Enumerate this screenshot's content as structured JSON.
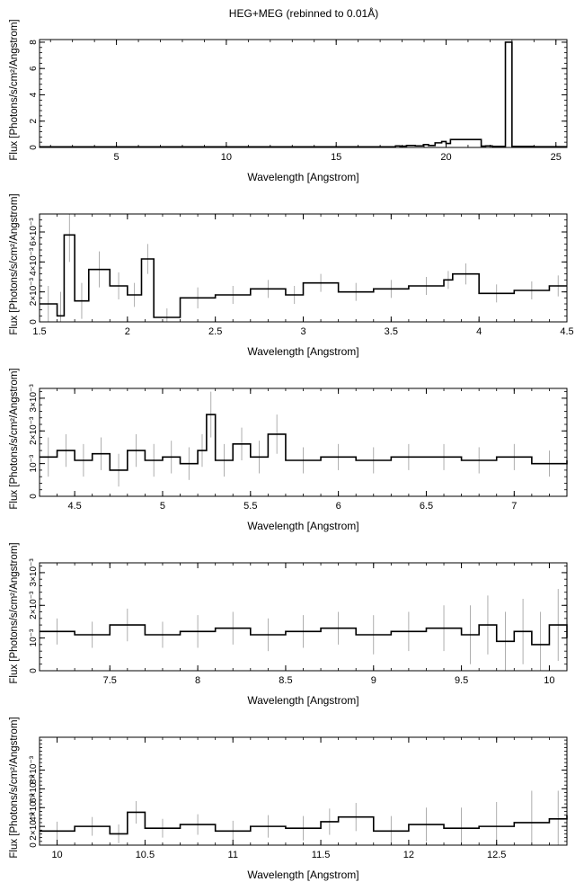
{
  "figure_title": "HEG+MEG (rebinned to 0.01Å)",
  "chart_data": [
    {
      "type": "line",
      "title": "HEG+MEG (rebinned to 0.01Å)",
      "xlabel": "Wavelength [Angstrom]",
      "ylabel": "Flux [Photons/s/cm²/Angstrom]",
      "xlim": [
        1.5,
        25.5
      ],
      "ylim": [
        0,
        8.2
      ],
      "xticks": [
        5,
        10,
        15,
        20,
        25
      ],
      "xtick_labels": [
        "5",
        "10",
        "15",
        "20",
        "25"
      ],
      "yticks": [
        0,
        2,
        4,
        6,
        8
      ],
      "ytick_labels": [
        "0",
        "2",
        "4",
        "6",
        "8"
      ],
      "grid": false,
      "series": [
        {
          "style": "histogram-step",
          "x": [
            1.5,
            17.7,
            17.9,
            18.2,
            18.6,
            18.97,
            19.2,
            19.5,
            19.8,
            20.0,
            20.2,
            21.6,
            21.8,
            22.1,
            22.7,
            23.0,
            24.0,
            25.5
          ],
          "y": [
            0.05,
            0.12,
            0.1,
            0.15,
            0.12,
            0.22,
            0.15,
            0.35,
            0.45,
            0.3,
            0.6,
            0.1,
            0.12,
            0.08,
            8.0,
            0.08,
            0.06,
            0.06
          ]
        }
      ]
    },
    {
      "type": "line",
      "xlabel": "Wavelength [Angstrom]",
      "ylabel": "Flux [Photons/s/cm²/Angstrom]",
      "xlim": [
        1.5,
        4.5
      ],
      "ylim": [
        0,
        0.0072
      ],
      "xticks": [
        1.5,
        2,
        2.5,
        3,
        3.5,
        4,
        4.5
      ],
      "xtick_labels": [
        "1.5",
        "2",
        "2.5",
        "3",
        "3.5",
        "4",
        "4.5"
      ],
      "yticks": [
        0,
        0.002,
        0.004,
        0.006
      ],
      "ytick_labels": [
        "0",
        "2×10⁻³",
        "4×10⁻³",
        "6×10⁻³"
      ],
      "grid": false,
      "series": [
        {
          "style": "histogram-step-with-errors",
          "x": [
            1.5,
            1.6,
            1.64,
            1.7,
            1.78,
            1.9,
            2.0,
            2.08,
            2.15,
            2.3,
            2.5,
            2.7,
            2.9,
            3.0,
            3.2,
            3.4,
            3.6,
            3.8,
            3.85,
            4.0,
            4.2,
            4.4
          ],
          "y": [
            0.0012,
            0.0004,
            0.0058,
            0.0014,
            0.0035,
            0.0024,
            0.0018,
            0.0042,
            0.0003,
            0.0016,
            0.0018,
            0.0022,
            0.0018,
            0.0026,
            0.002,
            0.0022,
            0.0024,
            0.0028,
            0.0032,
            0.0019,
            0.0021,
            0.0024
          ],
          "yerr": [
            0.0012,
            0.0016,
            0.0018,
            0.0012,
            0.0012,
            0.0009,
            0.0008,
            0.001,
            0.0006,
            0.0007,
            0.0006,
            0.0006,
            0.0006,
            0.0006,
            0.0006,
            0.0006,
            0.0006,
            0.0006,
            0.0007,
            0.0006,
            0.0006,
            0.0007
          ]
        }
      ]
    },
    {
      "type": "line",
      "xlabel": "Wavelength [Angstrom]",
      "ylabel": "Flux [Photons/s/cm²/Angstrom]",
      "xlim": [
        4.3,
        7.3
      ],
      "ylim": [
        0,
        0.0033
      ],
      "xticks": [
        4.5,
        5,
        5.5,
        6,
        6.5,
        7
      ],
      "xtick_labels": [
        "4.5",
        "5",
        "5.5",
        "6",
        "6.5",
        "7"
      ],
      "yticks": [
        0,
        0.001,
        0.002,
        0.003
      ],
      "ytick_labels": [
        "0",
        "10⁻³",
        "2×10⁻³",
        "3×10⁻³"
      ],
      "grid": false,
      "series": [
        {
          "style": "histogram-step-with-errors",
          "x": [
            4.3,
            4.4,
            4.5,
            4.6,
            4.7,
            4.8,
            4.9,
            5.0,
            5.1,
            5.2,
            5.25,
            5.3,
            5.4,
            5.5,
            5.6,
            5.7,
            5.9,
            6.1,
            6.3,
            6.5,
            6.7,
            6.9,
            7.1,
            7.3
          ],
          "y": [
            0.0012,
            0.0014,
            0.0011,
            0.0013,
            0.0008,
            0.0014,
            0.0011,
            0.0012,
            0.001,
            0.0014,
            0.0025,
            0.0011,
            0.0016,
            0.0012,
            0.0019,
            0.0011,
            0.0012,
            0.0011,
            0.0012,
            0.0012,
            0.0011,
            0.0012,
            0.001,
            0.0011
          ],
          "yerr": [
            0.0006,
            0.0005,
            0.0005,
            0.0005,
            0.0005,
            0.0005,
            0.0005,
            0.0005,
            0.0005,
            0.0005,
            0.0007,
            0.0005,
            0.0005,
            0.0005,
            0.0006,
            0.0004,
            0.0004,
            0.0004,
            0.0004,
            0.0004,
            0.0004,
            0.0004,
            0.0004,
            0.0004
          ]
        }
      ]
    },
    {
      "type": "line",
      "xlabel": "Wavelength [Angstrom]",
      "ylabel": "Flux [Photons/s/cm²/Angstrom]",
      "xlim": [
        7.1,
        10.1
      ],
      "ylim": [
        0,
        0.0033
      ],
      "xticks": [
        7.5,
        8,
        8.5,
        9,
        9.5,
        10
      ],
      "xtick_labels": [
        "7.5",
        "8",
        "8.5",
        "9",
        "9.5",
        "10"
      ],
      "yticks": [
        0,
        0.001,
        0.002,
        0.003
      ],
      "ytick_labels": [
        "0",
        "10⁻³",
        "2×10⁻³",
        "3×10⁻³"
      ],
      "grid": false,
      "series": [
        {
          "style": "histogram-step-with-errors",
          "x": [
            7.1,
            7.3,
            7.5,
            7.7,
            7.9,
            8.1,
            8.3,
            8.5,
            8.7,
            8.9,
            9.1,
            9.3,
            9.5,
            9.6,
            9.7,
            9.8,
            9.9,
            10.0,
            10.1
          ],
          "y": [
            0.0012,
            0.0011,
            0.0014,
            0.0011,
            0.0012,
            0.0013,
            0.0011,
            0.0012,
            0.0013,
            0.0011,
            0.0012,
            0.0013,
            0.0011,
            0.0014,
            0.0009,
            0.0012,
            0.0008,
            0.0014,
            0.001
          ],
          "yerr": [
            0.0004,
            0.0004,
            0.0005,
            0.0004,
            0.0005,
            0.0005,
            0.0005,
            0.0005,
            0.0005,
            0.0006,
            0.0006,
            0.0007,
            0.0009,
            0.0009,
            0.0009,
            0.001,
            0.001,
            0.0011,
            0.0011
          ]
        }
      ]
    },
    {
      "type": "line",
      "xlabel": "Wavelength [Angstrom]",
      "ylabel": "Flux [Photons/s/cm²/Angstrom]",
      "xlim": [
        9.9,
        12.9
      ],
      "ylim": [
        0,
        0.0115
      ],
      "xticks": [
        10,
        10.5,
        11,
        11.5,
        12,
        12.5
      ],
      "xtick_labels": [
        "10",
        "10.5",
        "11",
        "11.5",
        "12",
        "12.5"
      ],
      "yticks": [
        0,
        0.002,
        0.004,
        0.006,
        0.008
      ],
      "ytick_labels": [
        "0",
        "2×10⁻³",
        "4×10⁻³",
        "6×10⁻³",
        "8×10⁻³"
      ],
      "grid": false,
      "series": [
        {
          "style": "histogram-step-with-errors",
          "x": [
            9.9,
            10.1,
            10.3,
            10.4,
            10.5,
            10.7,
            10.9,
            11.1,
            11.3,
            11.5,
            11.6,
            11.8,
            12.0,
            12.2,
            12.4,
            12.6,
            12.8,
            12.9
          ],
          "y": [
            0.0015,
            0.002,
            0.0012,
            0.0035,
            0.0018,
            0.0022,
            0.0015,
            0.002,
            0.0018,
            0.0025,
            0.003,
            0.0015,
            0.0022,
            0.0018,
            0.002,
            0.0024,
            0.0028,
            0.0032
          ],
          "yerr": [
            0.001,
            0.001,
            0.001,
            0.0012,
            0.001,
            0.0011,
            0.0011,
            0.0012,
            0.0013,
            0.0014,
            0.0015,
            0.0016,
            0.0018,
            0.0022,
            0.0026,
            0.0034,
            0.003,
            0.0028
          ]
        }
      ]
    }
  ]
}
